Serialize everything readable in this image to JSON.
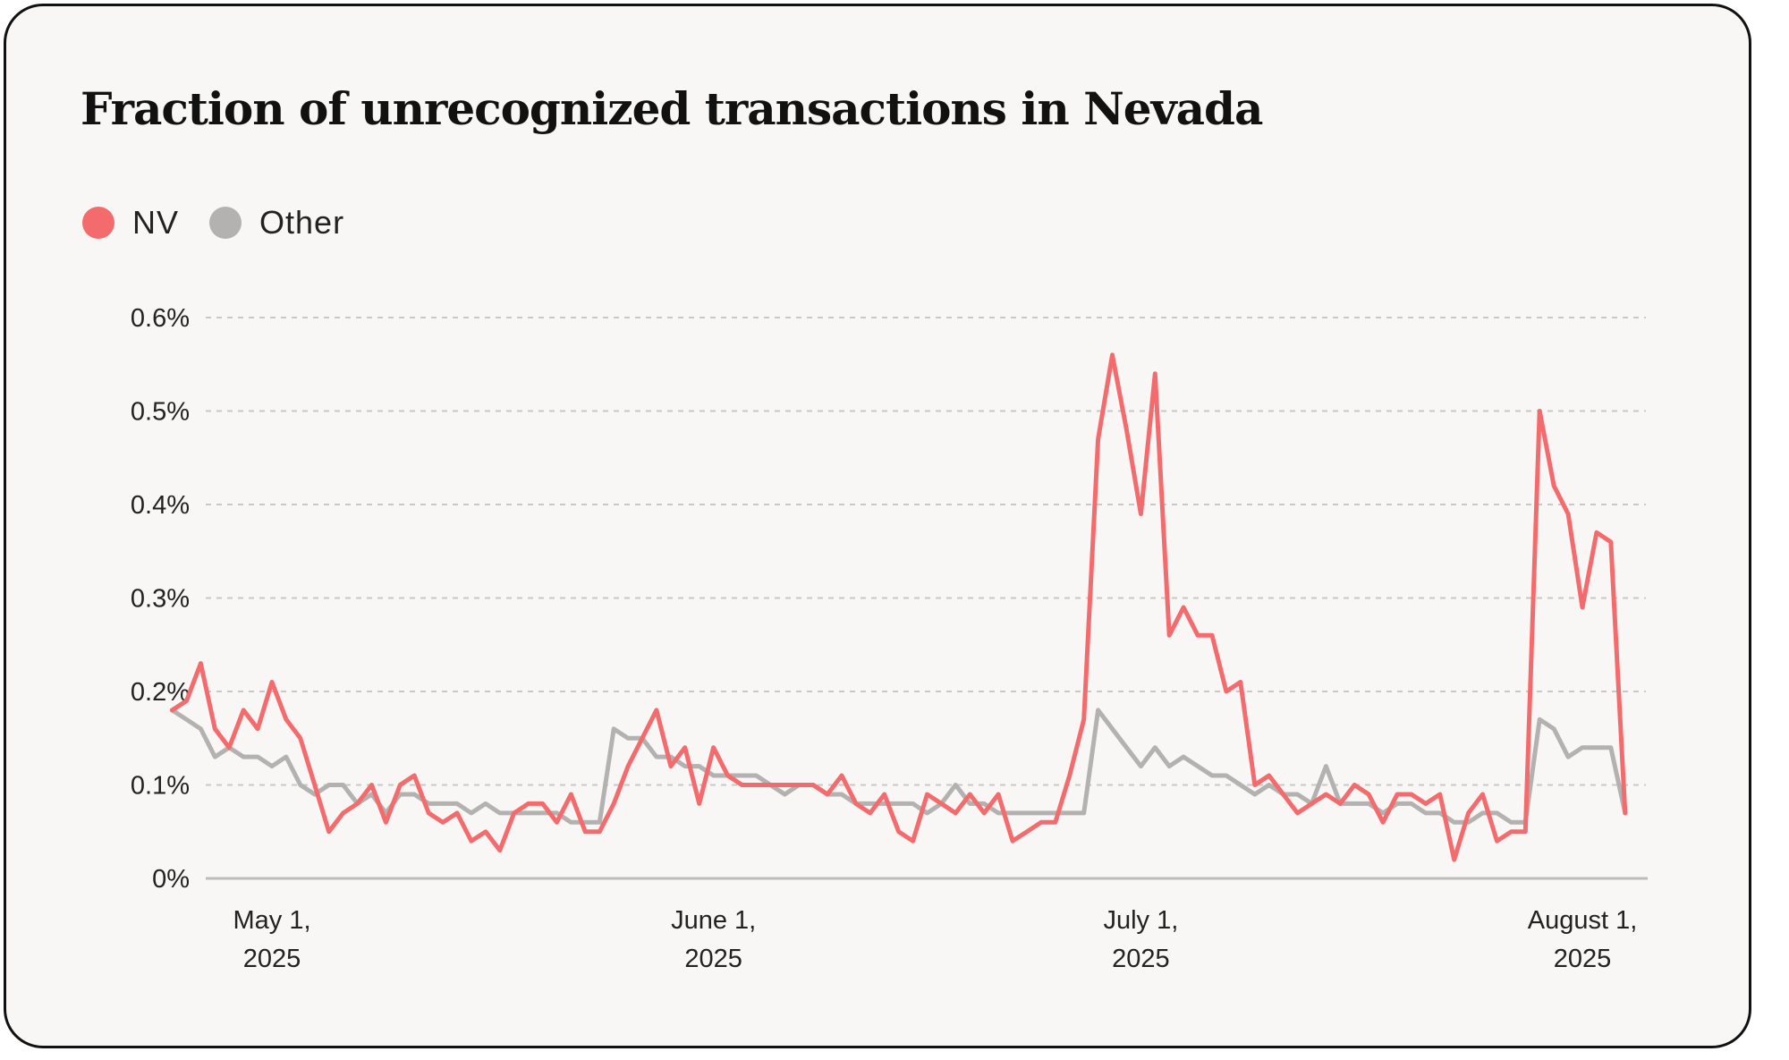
{
  "chart_data": {
    "type": "line",
    "title": "Fraction of unrecognized transactions in Nevada",
    "xlabel": "",
    "ylabel": "",
    "ylim": [
      0,
      0.6
    ],
    "y_unit": "%",
    "grid": "horizontal dashed",
    "legend_position": "top-left",
    "y_ticks": [
      "0%",
      "0.1%",
      "0.2%",
      "0.3%",
      "0.4%",
      "0.5%",
      "0.6%"
    ],
    "x_ticks": [
      {
        "date": "2025-05-01",
        "line1": "May 1,",
        "line2": "2025"
      },
      {
        "date": "2025-06-01",
        "line1": "June 1,",
        "line2": "2025"
      },
      {
        "date": "2025-07-01",
        "line1": "July 1,",
        "line2": "2025"
      },
      {
        "date": "2025-08-01",
        "line1": "August 1,",
        "line2": "2025"
      }
    ],
    "series": [
      {
        "name": "NV",
        "color": "#f46b6e",
        "points": [
          [
            "2025-04-24",
            0.18
          ],
          [
            "2025-04-25",
            0.19
          ],
          [
            "2025-04-26",
            0.23
          ],
          [
            "2025-04-27",
            0.16
          ],
          [
            "2025-04-28",
            0.14
          ],
          [
            "2025-04-29",
            0.18
          ],
          [
            "2025-04-30",
            0.16
          ],
          [
            "2025-05-01",
            0.21
          ],
          [
            "2025-05-02",
            0.17
          ],
          [
            "2025-05-03",
            0.15
          ],
          [
            "2025-05-04",
            0.1
          ],
          [
            "2025-05-05",
            0.05
          ],
          [
            "2025-05-06",
            0.07
          ],
          [
            "2025-05-07",
            0.08
          ],
          [
            "2025-05-08",
            0.1
          ],
          [
            "2025-05-09",
            0.06
          ],
          [
            "2025-05-10",
            0.1
          ],
          [
            "2025-05-11",
            0.11
          ],
          [
            "2025-05-12",
            0.07
          ],
          [
            "2025-05-13",
            0.06
          ],
          [
            "2025-05-14",
            0.07
          ],
          [
            "2025-05-15",
            0.04
          ],
          [
            "2025-05-16",
            0.05
          ],
          [
            "2025-05-17",
            0.03
          ],
          [
            "2025-05-18",
            0.07
          ],
          [
            "2025-05-19",
            0.08
          ],
          [
            "2025-05-20",
            0.08
          ],
          [
            "2025-05-21",
            0.06
          ],
          [
            "2025-05-22",
            0.09
          ],
          [
            "2025-05-23",
            0.05
          ],
          [
            "2025-05-24",
            0.05
          ],
          [
            "2025-05-25",
            0.08
          ],
          [
            "2025-05-26",
            0.12
          ],
          [
            "2025-05-27",
            0.15
          ],
          [
            "2025-05-28",
            0.18
          ],
          [
            "2025-05-29",
            0.12
          ],
          [
            "2025-05-30",
            0.14
          ],
          [
            "2025-05-31",
            0.08
          ],
          [
            "2025-06-01",
            0.14
          ],
          [
            "2025-06-02",
            0.11
          ],
          [
            "2025-06-03",
            0.1
          ],
          [
            "2025-06-04",
            0.1
          ],
          [
            "2025-06-05",
            0.1
          ],
          [
            "2025-06-06",
            0.1
          ],
          [
            "2025-06-07",
            0.1
          ],
          [
            "2025-06-08",
            0.1
          ],
          [
            "2025-06-09",
            0.09
          ],
          [
            "2025-06-10",
            0.11
          ],
          [
            "2025-06-11",
            0.08
          ],
          [
            "2025-06-12",
            0.07
          ],
          [
            "2025-06-13",
            0.09
          ],
          [
            "2025-06-14",
            0.05
          ],
          [
            "2025-06-15",
            0.04
          ],
          [
            "2025-06-16",
            0.09
          ],
          [
            "2025-06-17",
            0.08
          ],
          [
            "2025-06-18",
            0.07
          ],
          [
            "2025-06-19",
            0.09
          ],
          [
            "2025-06-20",
            0.07
          ],
          [
            "2025-06-21",
            0.09
          ],
          [
            "2025-06-22",
            0.04
          ],
          [
            "2025-06-23",
            0.05
          ],
          [
            "2025-06-24",
            0.06
          ],
          [
            "2025-06-25",
            0.06
          ],
          [
            "2025-06-26",
            0.11
          ],
          [
            "2025-06-27",
            0.17
          ],
          [
            "2025-06-28",
            0.47
          ],
          [
            "2025-06-29",
            0.56
          ],
          [
            "2025-06-30",
            0.48
          ],
          [
            "2025-07-01",
            0.39
          ],
          [
            "2025-07-02",
            0.54
          ],
          [
            "2025-07-03",
            0.26
          ],
          [
            "2025-07-04",
            0.29
          ],
          [
            "2025-07-05",
            0.26
          ],
          [
            "2025-07-06",
            0.26
          ],
          [
            "2025-07-07",
            0.2
          ],
          [
            "2025-07-08",
            0.21
          ],
          [
            "2025-07-09",
            0.1
          ],
          [
            "2025-07-10",
            0.11
          ],
          [
            "2025-07-11",
            0.09
          ],
          [
            "2025-07-12",
            0.07
          ],
          [
            "2025-07-13",
            0.08
          ],
          [
            "2025-07-14",
            0.09
          ],
          [
            "2025-07-15",
            0.08
          ],
          [
            "2025-07-16",
            0.1
          ],
          [
            "2025-07-17",
            0.09
          ],
          [
            "2025-07-18",
            0.06
          ],
          [
            "2025-07-19",
            0.09
          ],
          [
            "2025-07-20",
            0.09
          ],
          [
            "2025-07-21",
            0.08
          ],
          [
            "2025-07-22",
            0.09
          ],
          [
            "2025-07-23",
            0.02
          ],
          [
            "2025-07-24",
            0.07
          ],
          [
            "2025-07-25",
            0.09
          ],
          [
            "2025-07-26",
            0.04
          ],
          [
            "2025-07-27",
            0.05
          ],
          [
            "2025-07-28",
            0.05
          ],
          [
            "2025-07-29",
            0.5
          ],
          [
            "2025-07-30",
            0.42
          ],
          [
            "2025-07-31",
            0.39
          ],
          [
            "2025-08-01",
            0.29
          ],
          [
            "2025-08-02",
            0.37
          ],
          [
            "2025-08-03",
            0.36
          ],
          [
            "2025-08-04",
            0.07
          ]
        ]
      },
      {
        "name": "Other",
        "color": "#b3b2b0",
        "points": [
          [
            "2025-04-24",
            0.18
          ],
          [
            "2025-04-25",
            0.17
          ],
          [
            "2025-04-26",
            0.16
          ],
          [
            "2025-04-27",
            0.13
          ],
          [
            "2025-04-28",
            0.14
          ],
          [
            "2025-04-29",
            0.13
          ],
          [
            "2025-04-30",
            0.13
          ],
          [
            "2025-05-01",
            0.12
          ],
          [
            "2025-05-02",
            0.13
          ],
          [
            "2025-05-03",
            0.1
          ],
          [
            "2025-05-04",
            0.09
          ],
          [
            "2025-05-05",
            0.1
          ],
          [
            "2025-05-06",
            0.1
          ],
          [
            "2025-05-07",
            0.08
          ],
          [
            "2025-05-08",
            0.09
          ],
          [
            "2025-05-09",
            0.07
          ],
          [
            "2025-05-10",
            0.09
          ],
          [
            "2025-05-11",
            0.09
          ],
          [
            "2025-05-12",
            0.08
          ],
          [
            "2025-05-13",
            0.08
          ],
          [
            "2025-05-14",
            0.08
          ],
          [
            "2025-05-15",
            0.07
          ],
          [
            "2025-05-16",
            0.08
          ],
          [
            "2025-05-17",
            0.07
          ],
          [
            "2025-05-18",
            0.07
          ],
          [
            "2025-05-19",
            0.07
          ],
          [
            "2025-05-20",
            0.07
          ],
          [
            "2025-05-21",
            0.07
          ],
          [
            "2025-05-22",
            0.06
          ],
          [
            "2025-05-23",
            0.06
          ],
          [
            "2025-05-24",
            0.06
          ],
          [
            "2025-05-25",
            0.16
          ],
          [
            "2025-05-26",
            0.15
          ],
          [
            "2025-05-27",
            0.15
          ],
          [
            "2025-05-28",
            0.13
          ],
          [
            "2025-05-29",
            0.13
          ],
          [
            "2025-05-30",
            0.12
          ],
          [
            "2025-05-31",
            0.12
          ],
          [
            "2025-06-01",
            0.11
          ],
          [
            "2025-06-02",
            0.11
          ],
          [
            "2025-06-03",
            0.11
          ],
          [
            "2025-06-04",
            0.11
          ],
          [
            "2025-06-05",
            0.1
          ],
          [
            "2025-06-06",
            0.09
          ],
          [
            "2025-06-07",
            0.1
          ],
          [
            "2025-06-08",
            0.1
          ],
          [
            "2025-06-09",
            0.09
          ],
          [
            "2025-06-10",
            0.09
          ],
          [
            "2025-06-11",
            0.08
          ],
          [
            "2025-06-12",
            0.08
          ],
          [
            "2025-06-13",
            0.08
          ],
          [
            "2025-06-14",
            0.08
          ],
          [
            "2025-06-15",
            0.08
          ],
          [
            "2025-06-16",
            0.07
          ],
          [
            "2025-06-17",
            0.08
          ],
          [
            "2025-06-18",
            0.1
          ],
          [
            "2025-06-19",
            0.08
          ],
          [
            "2025-06-20",
            0.08
          ],
          [
            "2025-06-21",
            0.07
          ],
          [
            "2025-06-22",
            0.07
          ],
          [
            "2025-06-23",
            0.07
          ],
          [
            "2025-06-24",
            0.07
          ],
          [
            "2025-06-25",
            0.07
          ],
          [
            "2025-06-26",
            0.07
          ],
          [
            "2025-06-27",
            0.07
          ],
          [
            "2025-06-28",
            0.18
          ],
          [
            "2025-06-29",
            0.16
          ],
          [
            "2025-06-30",
            0.14
          ],
          [
            "2025-07-01",
            0.12
          ],
          [
            "2025-07-02",
            0.14
          ],
          [
            "2025-07-03",
            0.12
          ],
          [
            "2025-07-04",
            0.13
          ],
          [
            "2025-07-05",
            0.12
          ],
          [
            "2025-07-06",
            0.11
          ],
          [
            "2025-07-07",
            0.11
          ],
          [
            "2025-07-08",
            0.1
          ],
          [
            "2025-07-09",
            0.09
          ],
          [
            "2025-07-10",
            0.1
          ],
          [
            "2025-07-11",
            0.09
          ],
          [
            "2025-07-12",
            0.09
          ],
          [
            "2025-07-13",
            0.08
          ],
          [
            "2025-07-14",
            0.12
          ],
          [
            "2025-07-15",
            0.08
          ],
          [
            "2025-07-16",
            0.08
          ],
          [
            "2025-07-17",
            0.08
          ],
          [
            "2025-07-18",
            0.07
          ],
          [
            "2025-07-19",
            0.08
          ],
          [
            "2025-07-20",
            0.08
          ],
          [
            "2025-07-21",
            0.07
          ],
          [
            "2025-07-22",
            0.07
          ],
          [
            "2025-07-23",
            0.06
          ],
          [
            "2025-07-24",
            0.06
          ],
          [
            "2025-07-25",
            0.07
          ],
          [
            "2025-07-26",
            0.07
          ],
          [
            "2025-07-27",
            0.06
          ],
          [
            "2025-07-28",
            0.06
          ],
          [
            "2025-07-29",
            0.17
          ],
          [
            "2025-07-30",
            0.16
          ],
          [
            "2025-07-31",
            0.13
          ],
          [
            "2025-08-01",
            0.14
          ],
          [
            "2025-08-02",
            0.14
          ],
          [
            "2025-08-03",
            0.14
          ],
          [
            "2025-08-04",
            0.07
          ]
        ]
      }
    ]
  }
}
